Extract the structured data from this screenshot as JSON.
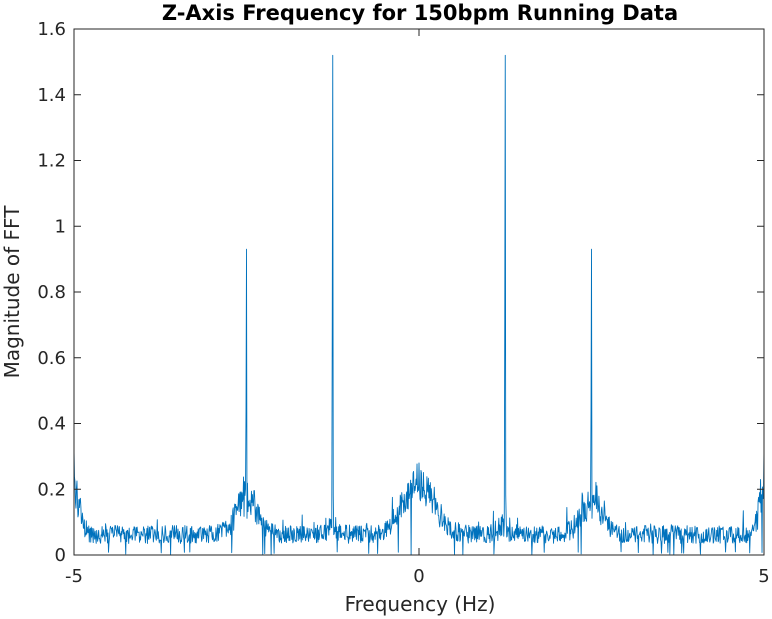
{
  "chart_data": {
    "type": "line",
    "title": "Z-Axis Frequency for 150bpm Running Data",
    "xlabel": "Frequency (Hz)",
    "ylabel": "Magnitude of FFT",
    "xlim": [
      -5,
      5
    ],
    "ylim": [
      0,
      1.6
    ],
    "xticks": [
      -5,
      0,
      5
    ],
    "xtick_labels": [
      "-5",
      "0",
      "5"
    ],
    "yticks": [
      0,
      0.2,
      0.4,
      0.6,
      0.8,
      1.0,
      1.2,
      1.4,
      1.6
    ],
    "ytick_labels": [
      "0",
      "0.2",
      "0.4",
      "0.6",
      "0.8",
      "1",
      "1.2",
      "1.4",
      "1.6"
    ],
    "grid": false,
    "box": true,
    "series": [
      {
        "color": "#0072BD",
        "peaks": [
          {
            "x": -5.0,
            "y": 0.32
          },
          {
            "x": -2.5,
            "y": 0.93
          },
          {
            "x": -1.25,
            "y": 1.52
          },
          {
            "x": 0.0,
            "y": 0.28
          },
          {
            "x": 1.25,
            "y": 1.52
          },
          {
            "x": 2.5,
            "y": 0.93
          },
          {
            "x": 5.0,
            "y": 0.32
          }
        ],
        "noise_floor": [
          0.0,
          0.1
        ]
      }
    ]
  }
}
